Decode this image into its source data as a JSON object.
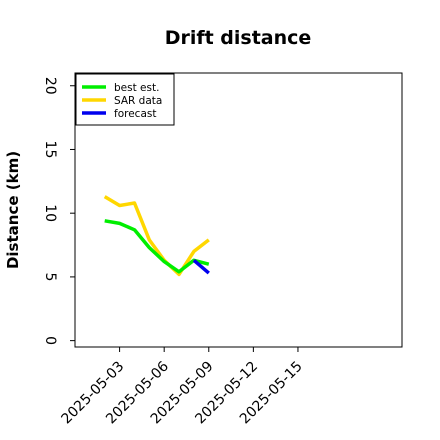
{
  "chart_data": {
    "type": "line",
    "title": "Drift distance",
    "xlabel": "",
    "ylabel": "Distance (km)",
    "ylim": [
      -0.5,
      21
    ],
    "xlim": [
      "2025-04-30",
      "2025-05-22"
    ],
    "yticks": [
      0,
      5,
      10,
      15,
      20
    ],
    "xticks": [
      "2025-05-03",
      "2025-05-06",
      "2025-05-09",
      "2025-05-12",
      "2025-05-15"
    ],
    "grid": false,
    "legend_position": "top-left",
    "series": [
      {
        "name": "best est.",
        "color": "#00ee00",
        "x": [
          "2025-05-02",
          "2025-05-03",
          "2025-05-04",
          "2025-05-05",
          "2025-05-06",
          "2025-05-07",
          "2025-05-08",
          "2025-05-09"
        ],
        "y": [
          9.4,
          9.2,
          8.7,
          7.3,
          6.2,
          5.4,
          6.3,
          6.0
        ]
      },
      {
        "name": "SAR data",
        "color": "#ffd700",
        "x": [
          "2025-05-02",
          "2025-05-03",
          "2025-05-04",
          "2025-05-05",
          "2025-05-06",
          "2025-05-07",
          "2025-05-08",
          "2025-05-09"
        ],
        "y": [
          11.3,
          10.6,
          10.8,
          7.9,
          6.3,
          5.2,
          7.0,
          7.9
        ]
      },
      {
        "name": "forecast",
        "color": "#0000ee",
        "x": [
          "2025-05-08",
          "2025-05-09"
        ],
        "y": [
          6.3,
          5.3
        ]
      }
    ]
  }
}
